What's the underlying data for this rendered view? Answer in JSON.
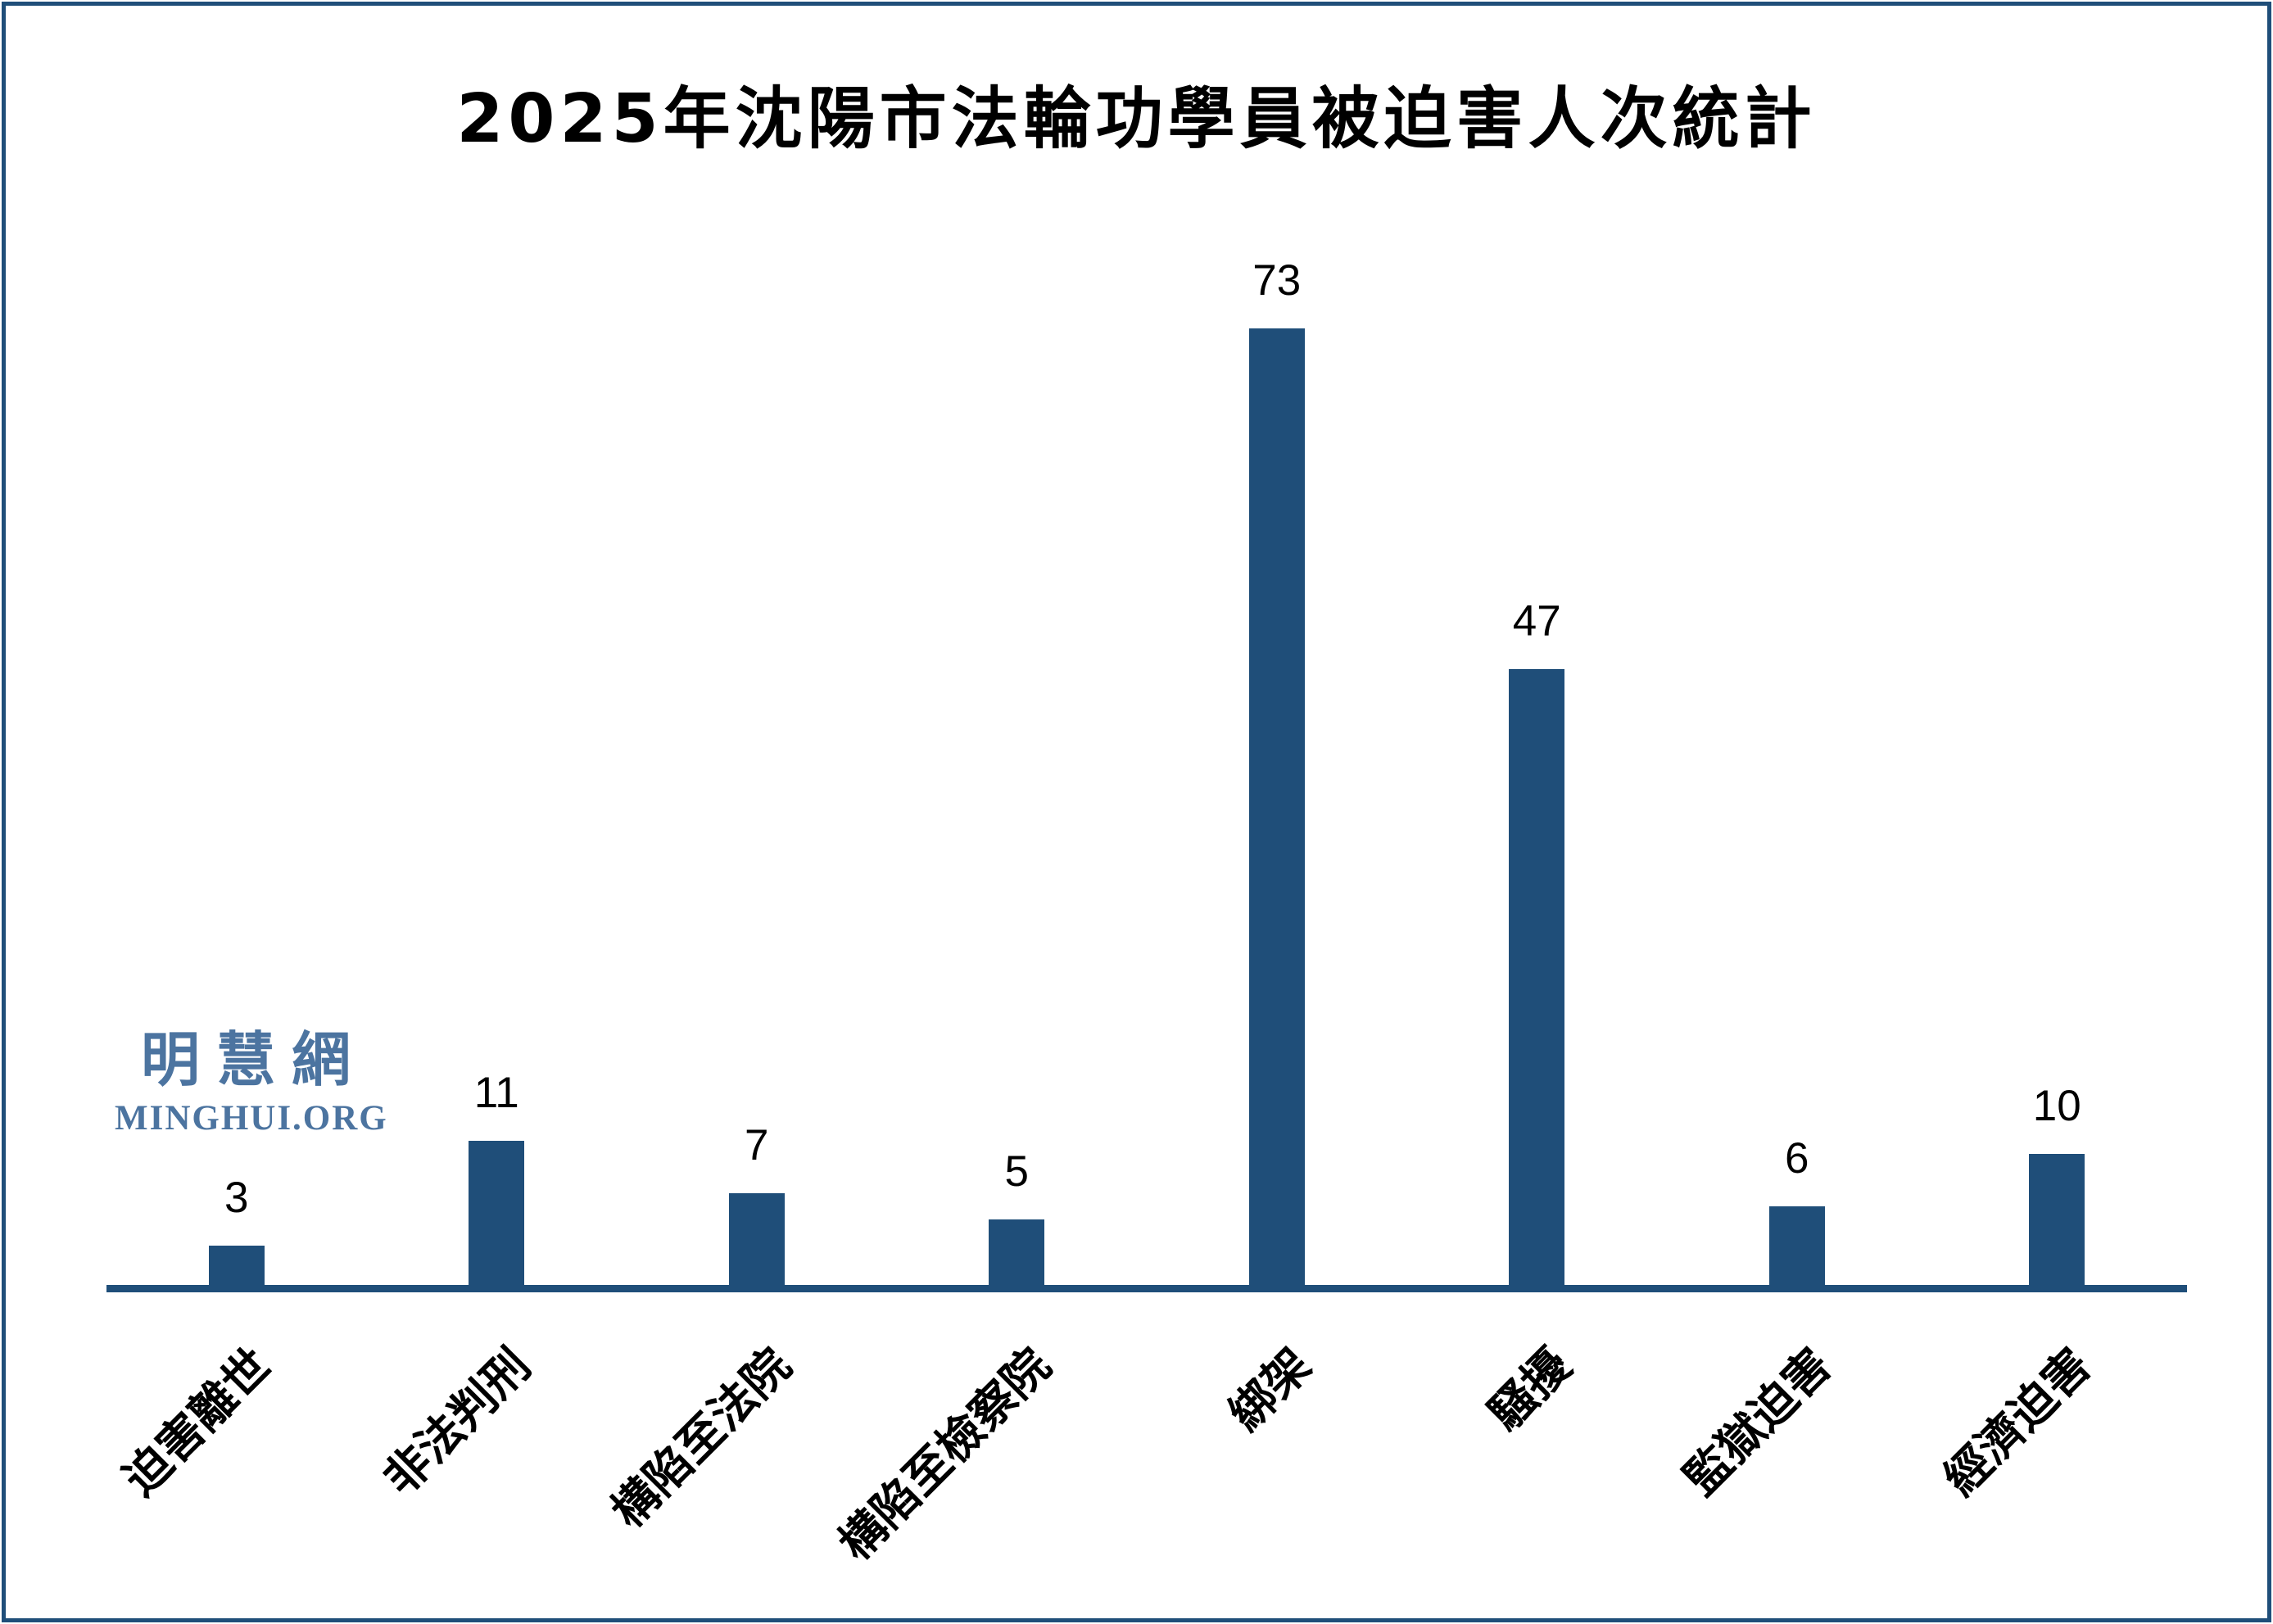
{
  "chart_data": {
    "type": "bar",
    "title": "2025年沈陽市法輪功學員被迫害人次統計",
    "categories": [
      "迫害離世",
      "非法判刑",
      "構陷至法院",
      "構陷至檢察院",
      "綁架",
      "騷擾",
      "監獄迫害",
      "經濟迫害"
    ],
    "values": [
      3,
      11,
      7,
      5,
      73,
      47,
      6,
      10
    ],
    "xlabel": "",
    "ylabel": "",
    "ylim": [
      0,
      75
    ],
    "grid": false,
    "legend": false,
    "value_labels_shown": true,
    "category_label_rotation_deg": 45,
    "bar_color": "#1F4E79",
    "axis_color": "#1F4E79",
    "value_label_color": "#000000"
  },
  "watermark": {
    "cjk": "明慧網",
    "latin": "MINGHUI.ORG",
    "color": "#4C74A0"
  },
  "frame_color": "#1F4E79"
}
